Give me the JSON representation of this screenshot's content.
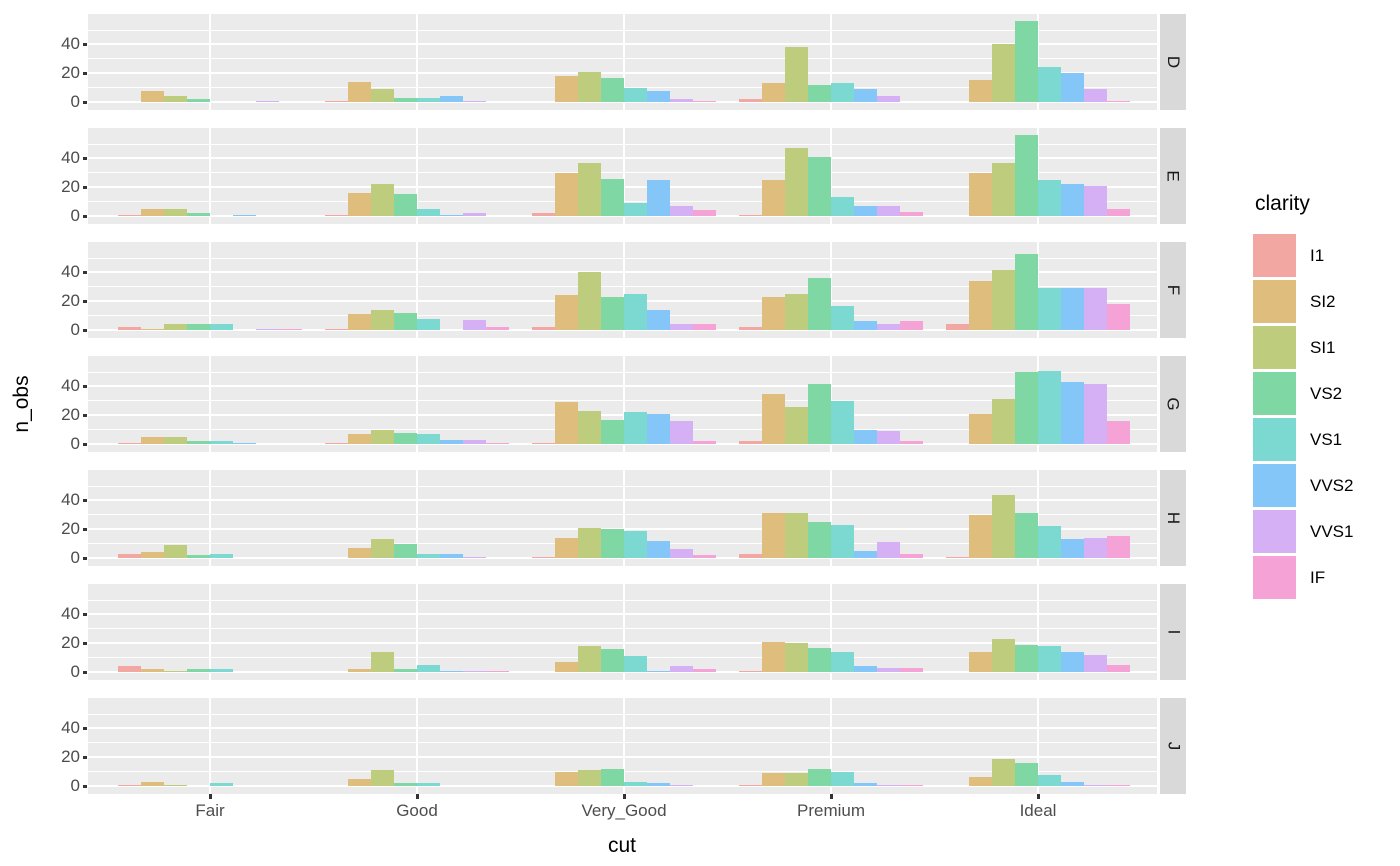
{
  "chart_data": {
    "type": "bar",
    "subtype": "dodged-bars-faceted-rows",
    "xlabel": "cut",
    "ylabel": "n_obs",
    "legend_title": "clarity",
    "legend_position": "right",
    "facet_label_side": "right",
    "grid": true,
    "categories": [
      "Fair",
      "Good",
      "Very_Good",
      "Premium",
      "Ideal"
    ],
    "clarity_levels": [
      "I1",
      "SI2",
      "SI1",
      "VS2",
      "VS1",
      "VVS2",
      "VVS1",
      "IF"
    ],
    "colors": [
      "#F3A7A3",
      "#DFBD7C",
      "#BECC7D",
      "#7FD7A4",
      "#7BD9D1",
      "#84C6F7",
      "#D5B0F5",
      "#F5A3D7"
    ],
    "panel_bg": "#EBEBEB",
    "strip_bg": "#D9D9D9",
    "grid_color": "#FFFFFF",
    "axis_text_color": "#4D4D4D",
    "y_ticks": [
      0,
      20,
      40
    ],
    "ylim": [
      0,
      57
    ],
    "facets": [
      {
        "label": "D",
        "values": [
          [
            0,
            8,
            4,
            2,
            0,
            0,
            1,
            0
          ],
          [
            1,
            14,
            9,
            3,
            3,
            4,
            1,
            0
          ],
          [
            0,
            18,
            21,
            17,
            10,
            8,
            2,
            1
          ],
          [
            2,
            13,
            38,
            12,
            13,
            9,
            4,
            0
          ],
          [
            0,
            15,
            40,
            56,
            24,
            20,
            9,
            1
          ]
        ]
      },
      {
        "label": "E",
        "values": [
          [
            1,
            5,
            5,
            2,
            0,
            1,
            0,
            0
          ],
          [
            1,
            16,
            22,
            15,
            5,
            1,
            2,
            0
          ],
          [
            2,
            30,
            37,
            26,
            9,
            25,
            7,
            4
          ],
          [
            1,
            25,
            47,
            41,
            13,
            7,
            7,
            3
          ],
          [
            0,
            30,
            37,
            56,
            25,
            22,
            21,
            5
          ]
        ]
      },
      {
        "label": "F",
        "values": [
          [
            2,
            1,
            4,
            4,
            4,
            0,
            1,
            1
          ],
          [
            1,
            11,
            14,
            12,
            8,
            0,
            7,
            2
          ],
          [
            2,
            24,
            40,
            23,
            25,
            14,
            4,
            4
          ],
          [
            2,
            23,
            25,
            36,
            17,
            6,
            4,
            6
          ],
          [
            4,
            34,
            42,
            53,
            29,
            29,
            29,
            18
          ]
        ]
      },
      {
        "label": "G",
        "values": [
          [
            1,
            5,
            5,
            2,
            2,
            1,
            0,
            0
          ],
          [
            1,
            7,
            10,
            8,
            7,
            3,
            3,
            1
          ],
          [
            1,
            29,
            23,
            17,
            22,
            21,
            16,
            2
          ],
          [
            2,
            35,
            26,
            42,
            30,
            10,
            9,
            2
          ],
          [
            0,
            21,
            31,
            50,
            51,
            43,
            42,
            16
          ]
        ]
      },
      {
        "label": "H",
        "values": [
          [
            3,
            4,
            9,
            2,
            3,
            0,
            0,
            0
          ],
          [
            0,
            7,
            13,
            10,
            3,
            3,
            1,
            0
          ],
          [
            1,
            14,
            21,
            20,
            19,
            12,
            6,
            2
          ],
          [
            3,
            31,
            31,
            25,
            23,
            5,
            11,
            3
          ],
          [
            1,
            30,
            44,
            31,
            22,
            13,
            14,
            15
          ]
        ]
      },
      {
        "label": "I",
        "values": [
          [
            4,
            2,
            1,
            2,
            2,
            0,
            0,
            0
          ],
          [
            0,
            2,
            14,
            2,
            5,
            1,
            1,
            1
          ],
          [
            0,
            7,
            18,
            16,
            11,
            1,
            4,
            2
          ],
          [
            1,
            21,
            20,
            17,
            14,
            4,
            3,
            3
          ],
          [
            0,
            14,
            23,
            19,
            18,
            14,
            12,
            5
          ]
        ]
      },
      {
        "label": "J",
        "values": [
          [
            1,
            3,
            1,
            0,
            2,
            0,
            0,
            0
          ],
          [
            0,
            5,
            11,
            2,
            2,
            0,
            0,
            0
          ],
          [
            0,
            10,
            11,
            12,
            3,
            2,
            1,
            0
          ],
          [
            1,
            9,
            9,
            12,
            10,
            2,
            1,
            1
          ],
          [
            0,
            6,
            19,
            16,
            8,
            3,
            1,
            1
          ]
        ]
      }
    ]
  }
}
